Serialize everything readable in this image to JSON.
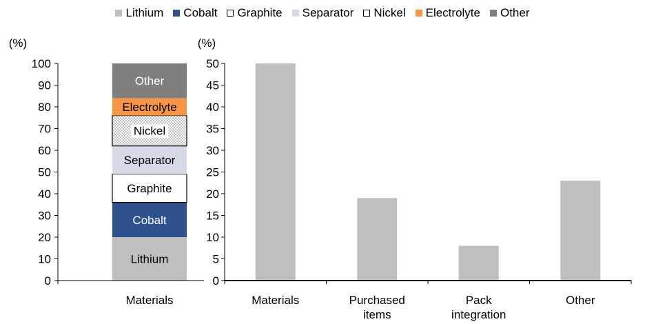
{
  "legend": [
    "Lithium",
    "Cobalt",
    "Graphite",
    "Separator",
    "Nickel",
    "Electrolyte",
    "Other"
  ],
  "colors": {
    "Lithium": "#bfbfbf",
    "Cobalt": "#2f528f",
    "Graphite": "#ffffff",
    "Separator": "#d5dae6",
    "Nickel": "#dcdcdc",
    "Electrolyte": "#f79646",
    "Other": "#7f7f7f",
    "bar": "#bfbfbf"
  },
  "chart_data": [
    {
      "type": "bar",
      "stacked": true,
      "ylabel": "(%)",
      "ylim": [
        0,
        100
      ],
      "yticks": [
        0,
        10,
        20,
        30,
        40,
        50,
        60,
        70,
        80,
        90,
        100
      ],
      "categories": [
        "Materials"
      ],
      "series": [
        {
          "name": "Lithium",
          "values": [
            20
          ]
        },
        {
          "name": "Cobalt",
          "values": [
            16
          ]
        },
        {
          "name": "Graphite",
          "values": [
            13
          ]
        },
        {
          "name": "Separator",
          "values": [
            13
          ]
        },
        {
          "name": "Nickel",
          "values": [
            14
          ]
        },
        {
          "name": "Electrolyte",
          "values": [
            8
          ]
        },
        {
          "name": "Other",
          "values": [
            16
          ]
        }
      ]
    },
    {
      "type": "bar",
      "ylabel": "(%)",
      "ylim": [
        0,
        50
      ],
      "yticks": [
        0,
        5,
        10,
        15,
        20,
        25,
        30,
        35,
        40,
        45,
        50
      ],
      "categories": [
        "Materials",
        "Purchased items",
        "Pack integration",
        "Other"
      ],
      "category_lines": [
        [
          "Materials"
        ],
        [
          "Purchased",
          "items"
        ],
        [
          "Pack",
          "integration"
        ],
        [
          "Other"
        ]
      ],
      "values": [
        50,
        19,
        8,
        23
      ]
    }
  ]
}
